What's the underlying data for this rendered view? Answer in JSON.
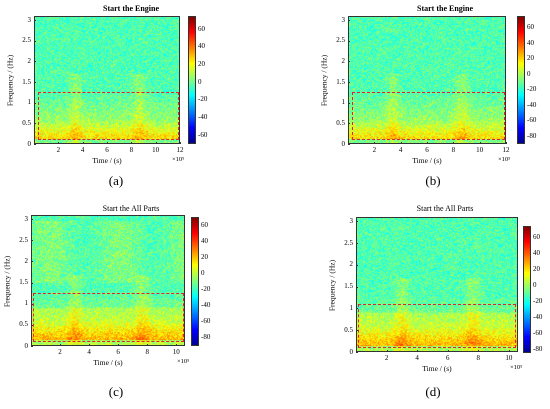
{
  "captions": [
    "(a)",
    "(b)",
    "(c)",
    "(d)"
  ],
  "chart_data": [
    {
      "type": "heatmap",
      "title": "Start the Engine",
      "xlabel": "Time / (s)",
      "ylabel": "Frequency / (Hz)",
      "x_exponent_label": "×10⁵",
      "xlim": [
        0,
        12
      ],
      "ylim": [
        0,
        3.1
      ],
      "xticks": [
        2,
        4,
        6,
        8,
        10,
        12
      ],
      "yticks": [
        0,
        0.5,
        1,
        1.5,
        2,
        2.5,
        3
      ],
      "colorbar_ticks": [
        60,
        40,
        20,
        0,
        -20,
        -40,
        -60
      ],
      "clim": [
        -70,
        75
      ],
      "highlight_box": {
        "x": [
          0.3,
          11.9
        ],
        "y": [
          0.1,
          1.25
        ]
      }
    },
    {
      "type": "heatmap",
      "title": "Start the Engine",
      "xlabel": "Time / (s)",
      "ylabel": "Frequency / (Hz)",
      "x_exponent_label": "×10⁵",
      "xlim": [
        0,
        12
      ],
      "ylim": [
        0,
        3.1
      ],
      "xticks": [
        2,
        4,
        6,
        8,
        10,
        12
      ],
      "yticks": [
        0,
        0.5,
        1,
        1.5,
        2,
        2.5,
        3
      ],
      "colorbar_ticks": [
        60,
        40,
        20,
        0,
        -20,
        -40,
        -60,
        -80
      ],
      "clim": [
        -90,
        75
      ],
      "highlight_box": {
        "x": [
          0.3,
          11.9
        ],
        "y": [
          0.1,
          1.25
        ]
      }
    },
    {
      "type": "heatmap",
      "title": "Start the All Parts",
      "xlabel": "Time / (s)",
      "ylabel": "Frequency / (Hz)",
      "x_exponent_label": "×10⁵",
      "xlim": [
        0,
        10.6
      ],
      "ylim": [
        0,
        3.1
      ],
      "xticks": [
        2,
        4,
        6,
        8,
        10
      ],
      "yticks": [
        0,
        0.5,
        1,
        1.5,
        2,
        2.5,
        3
      ],
      "colorbar_ticks": [
        60,
        40,
        20,
        0,
        -20,
        -40,
        -60,
        -80
      ],
      "clim": [
        -90,
        70
      ],
      "highlight_box": {
        "x": [
          0.15,
          10.5
        ],
        "y": [
          0.1,
          1.25
        ]
      }
    },
    {
      "type": "heatmap",
      "title": "Start the All Parts",
      "xlabel": "Time / (s)",
      "ylabel": "Frequency / (Hz)",
      "x_exponent_label": "×10⁵",
      "xlim": [
        0,
        10.6
      ],
      "ylim": [
        0,
        3.1
      ],
      "xticks": [
        2,
        4,
        6,
        8,
        10
      ],
      "yticks": [
        0,
        0.5,
        1,
        1.5,
        2,
        2.5,
        3
      ],
      "colorbar_ticks": [
        60,
        40,
        20,
        0,
        -20,
        -40,
        -60,
        -80
      ],
      "clim": [
        -85,
        75
      ],
      "highlight_box": {
        "x": [
          0.15,
          10.5
        ],
        "y": [
          0.1,
          1.1
        ]
      }
    }
  ]
}
